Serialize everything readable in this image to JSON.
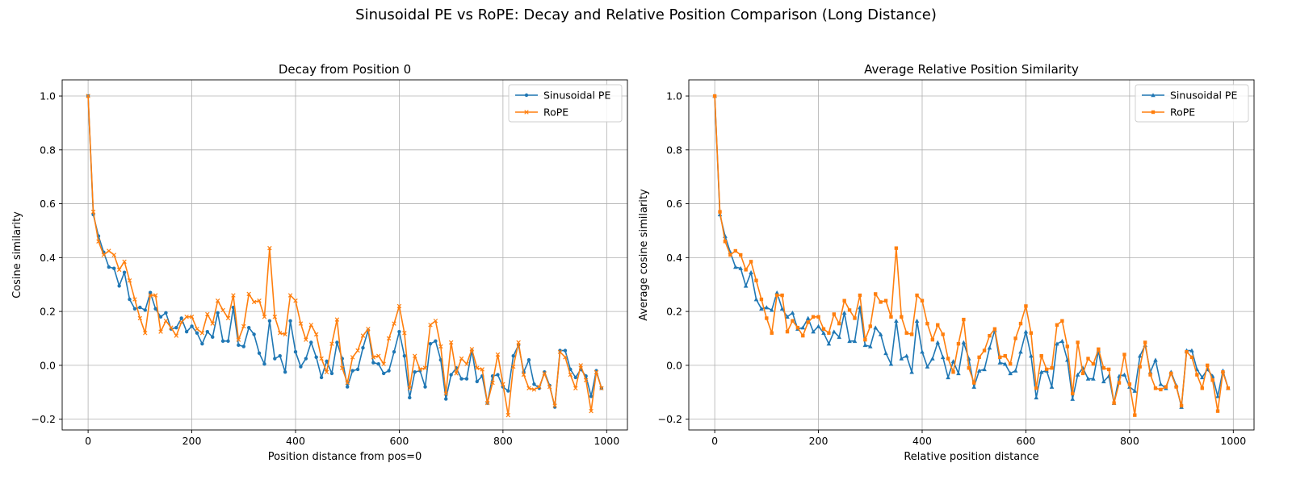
{
  "suptitle": "Sinusoidal PE vs RoPE: Decay and Relative Position Comparison (Long Distance)",
  "colors": {
    "sinusoidal": "#1f77b4",
    "rope": "#ff7f0e",
    "grid": "#b0b0b0"
  },
  "chart_data": [
    {
      "type": "line",
      "title": "Decay from Position 0",
      "xlabel": "Position distance from pos=0",
      "ylabel": "Cosine similarity",
      "xlim": [
        -50,
        1040
      ],
      "ylim": [
        -0.24,
        1.06
      ],
      "xticks": [
        0,
        200,
        400,
        600,
        800,
        1000
      ],
      "yticks": [
        -0.2,
        0.0,
        0.2,
        0.4,
        0.6,
        0.8,
        1.0
      ],
      "grid": true,
      "legend": "top-right",
      "x": [
        0,
        10,
        20,
        30,
        40,
        50,
        60,
        70,
        80,
        90,
        100,
        110,
        120,
        130,
        140,
        150,
        160,
        170,
        180,
        190,
        200,
        210,
        220,
        230,
        240,
        250,
        260,
        270,
        280,
        290,
        300,
        310,
        320,
        330,
        340,
        350,
        360,
        370,
        380,
        390,
        400,
        410,
        420,
        430,
        440,
        450,
        460,
        470,
        480,
        490,
        500,
        510,
        520,
        530,
        540,
        550,
        560,
        570,
        580,
        590,
        600,
        610,
        620,
        630,
        640,
        650,
        660,
        670,
        680,
        690,
        700,
        710,
        720,
        730,
        740,
        750,
        760,
        770,
        780,
        790,
        800,
        810,
        820,
        830,
        840,
        850,
        860,
        870,
        880,
        890,
        900,
        910,
        920,
        930,
        940,
        950,
        960,
        970,
        980,
        990
      ],
      "series": [
        {
          "name": "Sinusoidal PE",
          "marker": "circle",
          "values": [
            1.0,
            0.56,
            0.48,
            0.42,
            0.365,
            0.36,
            0.295,
            0.345,
            0.245,
            0.21,
            0.215,
            0.205,
            0.27,
            0.21,
            0.18,
            0.195,
            0.135,
            0.14,
            0.175,
            0.125,
            0.145,
            0.12,
            0.08,
            0.125,
            0.105,
            0.195,
            0.09,
            0.09,
            0.215,
            0.075,
            0.07,
            0.14,
            0.115,
            0.045,
            0.005,
            0.165,
            0.025,
            0.035,
            -0.025,
            0.165,
            0.05,
            -0.005,
            0.025,
            0.085,
            0.03,
            -0.045,
            0.015,
            -0.03,
            0.085,
            0.025,
            -0.08,
            -0.02,
            -0.015,
            0.065,
            0.13,
            0.01,
            0.005,
            -0.03,
            -0.02,
            0.05,
            0.125,
            0.035,
            -0.12,
            -0.025,
            -0.02,
            -0.08,
            0.08,
            0.09,
            0.02,
            -0.125,
            -0.035,
            -0.01,
            -0.05,
            -0.05,
            0.055,
            -0.06,
            -0.04,
            -0.14,
            -0.04,
            -0.035,
            -0.08,
            -0.095,
            0.035,
            0.075,
            -0.025,
            0.02,
            -0.07,
            -0.085,
            -0.025,
            -0.075,
            -0.155,
            0.055,
            0.055,
            -0.015,
            -0.045,
            -0.015,
            -0.04,
            -0.115,
            -0.02,
            -0.085
          ]
        },
        {
          "name": "RoPE",
          "marker": "x",
          "values": [
            1.0,
            0.57,
            0.46,
            0.41,
            0.425,
            0.41,
            0.355,
            0.385,
            0.315,
            0.245,
            0.175,
            0.12,
            0.26,
            0.26,
            0.125,
            0.165,
            0.14,
            0.11,
            0.16,
            0.18,
            0.18,
            0.135,
            0.12,
            0.19,
            0.155,
            0.24,
            0.205,
            0.175,
            0.26,
            0.095,
            0.145,
            0.265,
            0.235,
            0.24,
            0.18,
            0.435,
            0.18,
            0.12,
            0.115,
            0.26,
            0.24,
            0.155,
            0.095,
            0.15,
            0.115,
            0.025,
            -0.025,
            0.08,
            0.17,
            -0.01,
            -0.065,
            0.03,
            0.055,
            0.11,
            0.135,
            0.03,
            0.035,
            0.005,
            0.1,
            0.155,
            0.22,
            0.12,
            -0.085,
            0.035,
            -0.015,
            -0.01,
            0.15,
            0.165,
            0.07,
            -0.105,
            0.085,
            -0.03,
            0.025,
            0.005,
            0.06,
            -0.01,
            -0.015,
            -0.14,
            -0.065,
            0.04,
            -0.07,
            -0.185,
            -0.005,
            0.085,
            -0.035,
            -0.085,
            -0.09,
            -0.08,
            -0.03,
            -0.08,
            -0.15,
            0.05,
            0.03,
            -0.035,
            -0.085,
            0.0,
            -0.055,
            -0.17,
            -0.025,
            -0.085
          ]
        }
      ]
    },
    {
      "type": "line",
      "title": "Average Relative Position Similarity",
      "xlabel": "Relative position distance",
      "ylabel": "Average cosine similarity",
      "xlim": [
        -50,
        1040
      ],
      "ylim": [
        -0.24,
        1.06
      ],
      "xticks": [
        0,
        200,
        400,
        600,
        800,
        1000
      ],
      "yticks": [
        -0.2,
        0.0,
        0.2,
        0.4,
        0.6,
        0.8,
        1.0
      ],
      "grid": true,
      "legend": "top-right",
      "x": [
        0,
        10,
        20,
        30,
        40,
        50,
        60,
        70,
        80,
        90,
        100,
        110,
        120,
        130,
        140,
        150,
        160,
        170,
        180,
        190,
        200,
        210,
        220,
        230,
        240,
        250,
        260,
        270,
        280,
        290,
        300,
        310,
        320,
        330,
        340,
        350,
        360,
        370,
        380,
        390,
        400,
        410,
        420,
        430,
        440,
        450,
        460,
        470,
        480,
        490,
        500,
        510,
        520,
        530,
        540,
        550,
        560,
        570,
        580,
        590,
        600,
        610,
        620,
        630,
        640,
        650,
        660,
        670,
        680,
        690,
        700,
        710,
        720,
        730,
        740,
        750,
        760,
        770,
        780,
        790,
        800,
        810,
        820,
        830,
        840,
        850,
        860,
        870,
        880,
        890,
        900,
        910,
        920,
        930,
        940,
        950,
        960,
        970,
        980,
        990
      ],
      "series": [
        {
          "name": "Sinusoidal PE",
          "marker": "triangle",
          "values": [
            1.0,
            0.56,
            0.48,
            0.42,
            0.365,
            0.36,
            0.295,
            0.345,
            0.245,
            0.21,
            0.215,
            0.205,
            0.27,
            0.21,
            0.18,
            0.195,
            0.135,
            0.14,
            0.175,
            0.125,
            0.145,
            0.12,
            0.08,
            0.125,
            0.105,
            0.195,
            0.09,
            0.09,
            0.215,
            0.075,
            0.07,
            0.14,
            0.115,
            0.045,
            0.005,
            0.165,
            0.025,
            0.035,
            -0.025,
            0.165,
            0.05,
            -0.005,
            0.025,
            0.085,
            0.03,
            -0.045,
            0.015,
            -0.03,
            0.085,
            0.025,
            -0.08,
            -0.02,
            -0.015,
            0.065,
            0.13,
            0.01,
            0.005,
            -0.03,
            -0.02,
            0.05,
            0.125,
            0.035,
            -0.12,
            -0.025,
            -0.02,
            -0.08,
            0.08,
            0.09,
            0.02,
            -0.125,
            -0.035,
            -0.01,
            -0.05,
            -0.05,
            0.055,
            -0.06,
            -0.04,
            -0.14,
            -0.04,
            -0.035,
            -0.08,
            -0.095,
            0.035,
            0.075,
            -0.025,
            0.02,
            -0.07,
            -0.085,
            -0.025,
            -0.075,
            -0.155,
            0.055,
            0.055,
            -0.015,
            -0.045,
            -0.015,
            -0.04,
            -0.115,
            -0.02,
            -0.085
          ]
        },
        {
          "name": "RoPE",
          "marker": "square",
          "values": [
            1.0,
            0.57,
            0.46,
            0.41,
            0.425,
            0.41,
            0.355,
            0.385,
            0.315,
            0.245,
            0.175,
            0.12,
            0.26,
            0.26,
            0.125,
            0.165,
            0.14,
            0.11,
            0.16,
            0.18,
            0.18,
            0.135,
            0.12,
            0.19,
            0.155,
            0.24,
            0.205,
            0.175,
            0.26,
            0.095,
            0.145,
            0.265,
            0.235,
            0.24,
            0.18,
            0.435,
            0.18,
            0.12,
            0.115,
            0.26,
            0.24,
            0.155,
            0.095,
            0.15,
            0.115,
            0.025,
            -0.025,
            0.08,
            0.17,
            -0.01,
            -0.065,
            0.03,
            0.055,
            0.11,
            0.135,
            0.03,
            0.035,
            0.005,
            0.1,
            0.155,
            0.22,
            0.12,
            -0.085,
            0.035,
            -0.015,
            -0.01,
            0.15,
            0.165,
            0.07,
            -0.105,
            0.085,
            -0.03,
            0.025,
            0.005,
            0.06,
            -0.01,
            -0.015,
            -0.14,
            -0.065,
            0.04,
            -0.07,
            -0.185,
            -0.005,
            0.085,
            -0.035,
            -0.085,
            -0.09,
            -0.08,
            -0.03,
            -0.08,
            -0.15,
            0.05,
            0.03,
            -0.035,
            -0.085,
            0.0,
            -0.055,
            -0.17,
            -0.025,
            -0.085
          ]
        }
      ]
    }
  ]
}
